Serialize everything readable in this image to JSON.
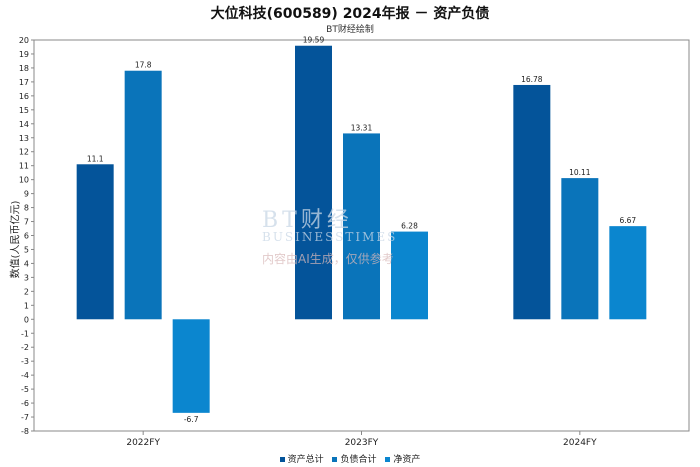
{
  "chart_data": {
    "type": "bar",
    "title": "大位科技(600589) 2024年报 － 资产负债",
    "subtitle": "BT财经绘制",
    "xlabel": "",
    "ylabel": "数值(人民币亿元)",
    "categories": [
      "2022FY",
      "2023FY",
      "2024FY"
    ],
    "series": [
      {
        "name": "资产总计",
        "color": "#04549a",
        "values": [
          11.1,
          19.59,
          16.78
        ]
      },
      {
        "name": "负债合计",
        "color": "#0a74ba",
        "values": [
          17.8,
          13.31,
          10.11
        ]
      },
      {
        "name": "净资产",
        "color": "#0b86cf",
        "values": [
          -6.7,
          6.28,
          6.67
        ]
      }
    ],
    "ylim": [
      -8,
      20
    ],
    "ytick_step": 1,
    "grid": false,
    "legend_position": "bottom",
    "data_labels": [
      [
        "11.1",
        "17.8",
        "-6.7"
      ],
      [
        "19.59",
        "13.31",
        "6.28"
      ],
      [
        "16.78",
        "10.11",
        "6.67"
      ]
    ]
  },
  "watermark": {
    "logo": "BT财经",
    "sub": "BUSINESSTIMES",
    "note": "内容由AI生成，仅供参考"
  }
}
